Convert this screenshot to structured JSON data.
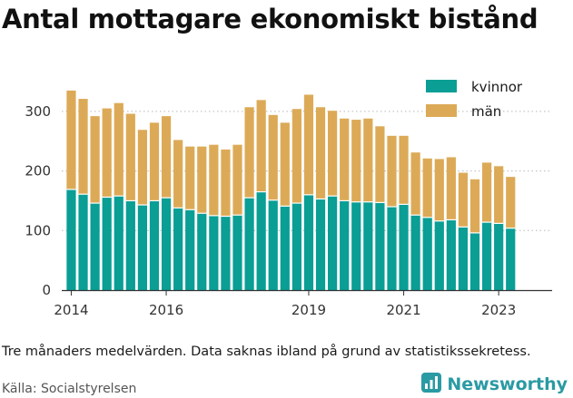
{
  "title": "Antal mottagare ekonomiskt bistånd",
  "caption": "Tre månaders medelvärden. Data saknas ibland på grund av statistikssekretess.",
  "source": "Källa: Socialstyrelsen",
  "brand": {
    "name": "Newsworthy",
    "icon": "chart-logo-icon",
    "color": "#2a9aa3"
  },
  "chart_data": {
    "type": "bar",
    "stacked": true,
    "grid": "horizontal-dotted",
    "legend_position": "top-right",
    "ylim": [
      0,
      350
    ],
    "yticks": [
      0,
      100,
      200,
      300
    ],
    "xticks": [
      "2014",
      "2016",
      "2019",
      "2021",
      "2023"
    ],
    "xtick_positions": [
      0,
      8,
      20,
      28,
      36
    ],
    "x_range": [
      -0.8,
      40.5
    ],
    "series": [
      {
        "name": "kvinnor",
        "color": "#0a9e95",
        "values": [
          169,
          161,
          146,
          156,
          158,
          150,
          143,
          150,
          155,
          138,
          135,
          129,
          125,
          124,
          126,
          155,
          165,
          151,
          141,
          146,
          160,
          153,
          158,
          150,
          148,
          148,
          147,
          140,
          144,
          126,
          122,
          116,
          118,
          106,
          96,
          114,
          112,
          104
        ]
      },
      {
        "name": "män",
        "color": "#dcaa57",
        "values": [
          166,
          160,
          146,
          149,
          156,
          146,
          126,
          131,
          137,
          114,
          106,
          112,
          119,
          112,
          118,
          152,
          154,
          143,
          140,
          158,
          168,
          154,
          143,
          138,
          138,
          140,
          128,
          119,
          115,
          105,
          99,
          104,
          105,
          91,
          90,
          100,
          96,
          86
        ]
      }
    ]
  }
}
